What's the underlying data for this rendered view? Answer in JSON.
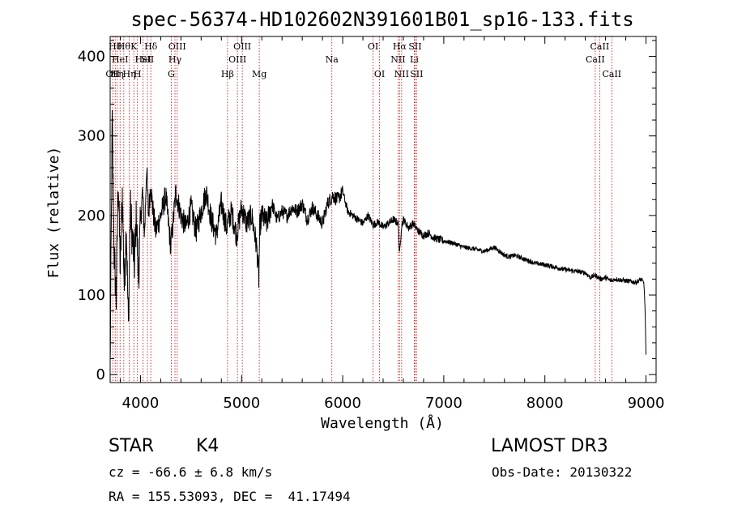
{
  "chart_data": {
    "type": "line",
    "title": "spec-56374-HD102602N391601B01_sp16-133.fits",
    "xlabel": "Wavelength (Å)",
    "ylabel": "Flux (relative)",
    "xlim": [
      3700,
      9100
    ],
    "ylim": [
      -10,
      425
    ],
    "xticks": [
      4000,
      5000,
      6000,
      7000,
      8000,
      9000
    ],
    "yticks": [
      0,
      100,
      200,
      300,
      400
    ],
    "line_color": "#000000",
    "marker_color": "#cc0000",
    "series": [
      {
        "name": "flux",
        "x": [
          3700,
          3720,
          3740,
          3760,
          3780,
          3800,
          3820,
          3840,
          3860,
          3880,
          3900,
          3920,
          3940,
          3960,
          3980,
          4000,
          4020,
          4040,
          4060,
          4080,
          4100,
          4120,
          4150,
          4200,
          4250,
          4300,
          4350,
          4400,
          4450,
          4500,
          4550,
          4600,
          4650,
          4700,
          4750,
          4800,
          4850,
          4900,
          4950,
          5000,
          5050,
          5100,
          5150,
          5170,
          5180,
          5200,
          5250,
          5300,
          5350,
          5400,
          5450,
          5500,
          5550,
          5600,
          5650,
          5700,
          5750,
          5800,
          5850,
          5900,
          5950,
          6000,
          6050,
          6100,
          6150,
          6200,
          6250,
          6300,
          6350,
          6400,
          6450,
          6500,
          6550,
          6563,
          6580,
          6600,
          6650,
          6700,
          6750,
          6800,
          6850,
          6900,
          6950,
          7000,
          7100,
          7200,
          7300,
          7400,
          7500,
          7600,
          7650,
          7700,
          7800,
          7900,
          8000,
          8100,
          8200,
          8300,
          8400,
          8450,
          8500,
          8550,
          8600,
          8650,
          8700,
          8800,
          8900,
          8950,
          8980,
          8990,
          9000
        ],
        "y": [
          5,
          320,
          150,
          95,
          250,
          130,
          230,
          110,
          190,
          60,
          210,
          170,
          140,
          200,
          120,
          190,
          230,
          175,
          260,
          200,
          240,
          210,
          180,
          200,
          225,
          160,
          230,
          200,
          185,
          210,
          180,
          205,
          230,
          195,
          175,
          215,
          185,
          205,
          175,
          210,
          190,
          200,
          160,
          120,
          185,
          200,
          190,
          215,
          195,
          205,
          200,
          210,
          205,
          215,
          195,
          210,
          200,
          190,
          215,
          225,
          220,
          230,
          205,
          200,
          195,
          190,
          200,
          188,
          192,
          185,
          190,
          195,
          190,
          150,
          185,
          195,
          185,
          190,
          180,
          175,
          178,
          172,
          170,
          168,
          165,
          160,
          158,
          155,
          160,
          150,
          148,
          150,
          145,
          140,
          138,
          135,
          132,
          130,
          128,
          122,
          125,
          120,
          122,
          118,
          120,
          118,
          116,
          120,
          115,
          85,
          25
        ]
      }
    ],
    "lines": [
      {
        "x": 3726,
        "label": "OII",
        "row": 3
      },
      {
        "x": 3750,
        "label": "Hθ",
        "row": 1
      },
      {
        "x": 3770,
        "label": "Hη",
        "row": 3
      },
      {
        "x": 3798,
        "label": "HeI",
        "row": 2
      },
      {
        "x": 3835,
        "label": "Hθ",
        "row": 1
      },
      {
        "x": 3889,
        "label": "Hη",
        "row": 3
      },
      {
        "x": 3934,
        "label": "K",
        "row": 1
      },
      {
        "x": 3970,
        "label": "H",
        "row": 3
      },
      {
        "x": 4026,
        "label": "HeI",
        "row": 2
      },
      {
        "x": 4069,
        "label": "SII",
        "row": 2
      },
      {
        "x": 4102,
        "label": "Hδ",
        "row": 1
      },
      {
        "x": 4304,
        "label": "G",
        "row": 3
      },
      {
        "x": 4341,
        "label": "Hγ",
        "row": 2
      },
      {
        "x": 4363,
        "label": "OIII",
        "row": 1
      },
      {
        "x": 4861,
        "label": "Hβ",
        "row": 3
      },
      {
        "x": 4959,
        "label": "OIII",
        "row": 2
      },
      {
        "x": 5007,
        "label": "OIII",
        "row": 1
      },
      {
        "x": 5175,
        "label": "Mg",
        "row": 3
      },
      {
        "x": 5893,
        "label": "Na",
        "row": 2
      },
      {
        "x": 6300,
        "label": "OI",
        "row": 1
      },
      {
        "x": 6364,
        "label": "OI",
        "row": 3
      },
      {
        "x": 6548,
        "label": "NII",
        "row": 2
      },
      {
        "x": 6563,
        "label": "Hα",
        "row": 1
      },
      {
        "x": 6583,
        "label": "NII",
        "row": 3
      },
      {
        "x": 6708,
        "label": "Li",
        "row": 2
      },
      {
        "x": 6716,
        "label": "SII",
        "row": 1
      },
      {
        "x": 6731,
        "label": "SII",
        "row": 3
      },
      {
        "x": 8498,
        "label": "CaII",
        "row": 2
      },
      {
        "x": 8542,
        "label": "CaII",
        "row": 1
      },
      {
        "x": 8662,
        "label": "CaII",
        "row": 3
      }
    ]
  },
  "info": {
    "class": "STAR",
    "subclass": "K4",
    "survey": "LAMOST DR3",
    "redshift": "cz = -66.6 ± 6.8 km/s",
    "obs_date": "Obs-Date: 20130322",
    "coords": "RA = 155.53093, DEC =  41.17494"
  }
}
